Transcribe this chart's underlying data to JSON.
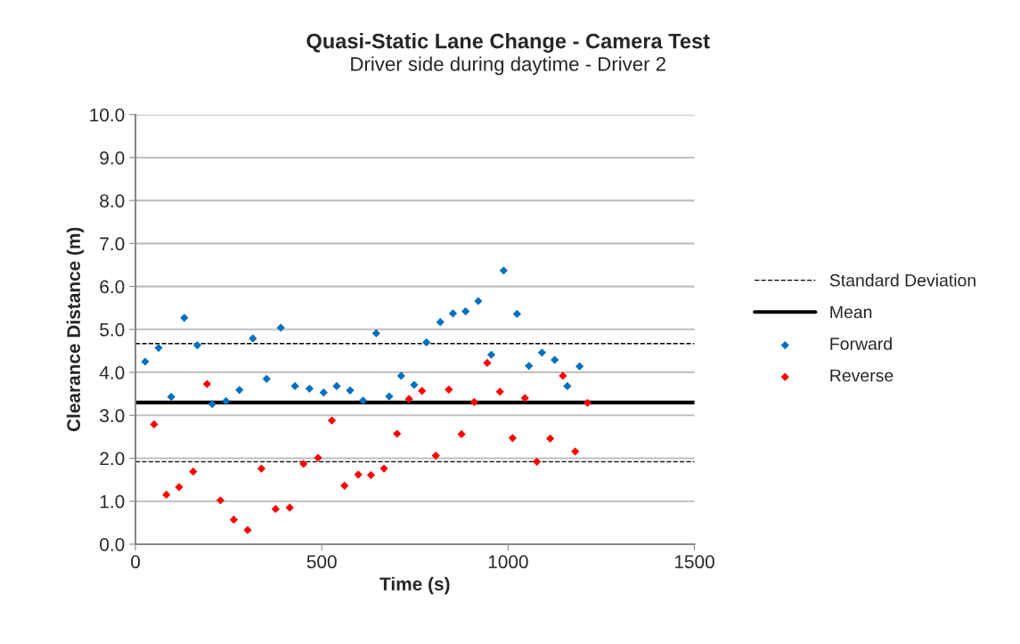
{
  "chart_data": {
    "type": "scatter",
    "title": "Quasi-Static Lane Change - Camera Test",
    "subtitle": "Driver side during daytime - Driver 2",
    "xlabel": "Time (s)",
    "ylabel": "Clearance Distance (m)",
    "xlim": [
      0,
      1500
    ],
    "xticks": [
      0,
      500,
      1000,
      1500
    ],
    "ylim": [
      0,
      10
    ],
    "yticks": [
      {
        "value": 0,
        "label": "0.0"
      },
      {
        "value": 1,
        "label": "1.0"
      },
      {
        "value": 2,
        "label": "2.0"
      },
      {
        "value": 3,
        "label": "3.0"
      },
      {
        "value": 4,
        "label": "4.0"
      },
      {
        "value": 5,
        "label": "5.0"
      },
      {
        "value": 6,
        "label": "6.0"
      },
      {
        "value": 7,
        "label": "7.0"
      },
      {
        "value": 8,
        "label": "8.0"
      },
      {
        "value": 9,
        "label": "9.0"
      },
      {
        "value": 10,
        "label": "10.0"
      }
    ],
    "grid": "y",
    "legend": "right",
    "marker": "diamond",
    "ref_lines": [
      {
        "axis": "y",
        "value": 4.67,
        "label": "Standard Deviation",
        "color": "#000000",
        "line_style": "dashed"
      },
      {
        "axis": "y",
        "value": 3.3,
        "label": "Mean",
        "color": "#000000",
        "line_style": "solid"
      },
      {
        "axis": "y",
        "value": 1.92,
        "color": "#000000",
        "line_style": "dashed"
      }
    ],
    "series": [
      {
        "name": "Forward",
        "color": "#0070c0",
        "x": [
          26,
          62,
          96,
          131,
          166,
          206,
          243,
          279,
          315,
          352,
          390,
          428,
          467,
          505,
          540,
          576,
          611,
          646,
          681,
          713,
          748,
          781,
          818,
          852,
          886,
          920,
          955,
          988,
          1024,
          1056,
          1091,
          1125,
          1159,
          1192
        ],
        "values": [
          4.25,
          4.57,
          3.43,
          5.27,
          4.63,
          3.26,
          3.33,
          3.59,
          4.79,
          3.85,
          5.04,
          3.68,
          3.62,
          3.53,
          3.68,
          3.58,
          3.34,
          4.91,
          3.44,
          3.92,
          3.71,
          4.7,
          5.17,
          5.37,
          5.42,
          5.66,
          4.41,
          6.37,
          5.36,
          4.15,
          4.46,
          4.29,
          3.68,
          4.14
        ]
      },
      {
        "name": "Reverse",
        "color": "#ff0000",
        "x": [
          50,
          83,
          117,
          155,
          192,
          228,
          264,
          301,
          338,
          376,
          414,
          451,
          490,
          527,
          561,
          598,
          632,
          667,
          702,
          734,
          769,
          806,
          841,
          875,
          909,
          944,
          978,
          1012,
          1045,
          1077,
          1113,
          1147,
          1180,
          1213
        ],
        "values": [
          2.79,
          1.15,
          1.33,
          1.69,
          3.73,
          1.02,
          0.57,
          0.33,
          1.76,
          0.82,
          0.85,
          1.87,
          2.01,
          2.88,
          1.36,
          1.62,
          1.61,
          1.76,
          2.57,
          3.38,
          3.57,
          2.06,
          3.6,
          2.56,
          3.31,
          4.22,
          3.55,
          2.47,
          3.4,
          1.92,
          2.46,
          3.92,
          2.16,
          3.29
        ]
      }
    ]
  }
}
